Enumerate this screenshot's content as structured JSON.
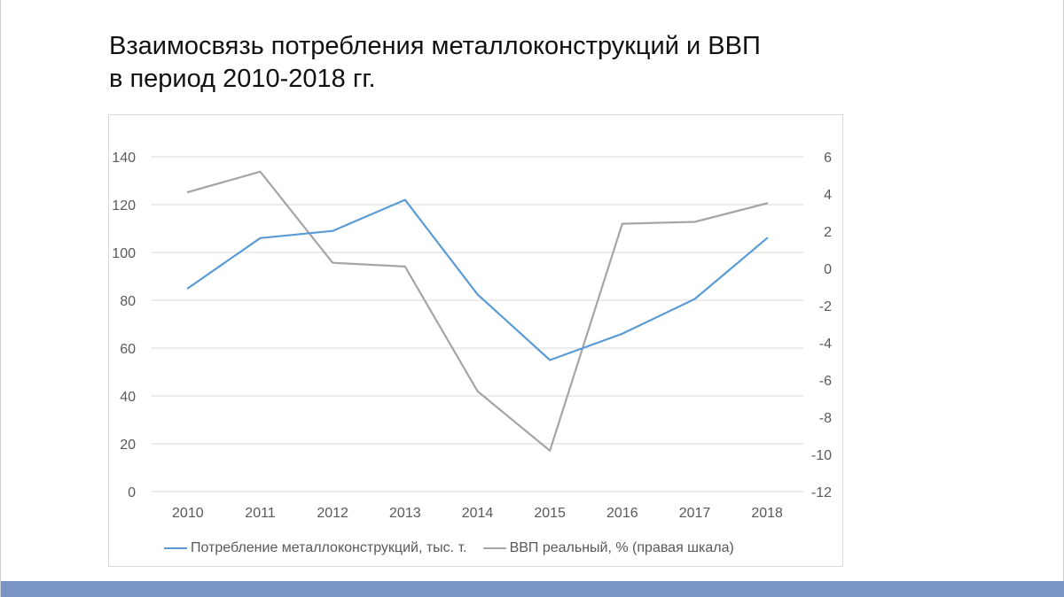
{
  "title": {
    "line1": "Взаимосвязь потребления металлоконструкций и ВВП",
    "line2": "в период 2010-2018 гг."
  },
  "chart_data": {
    "type": "line",
    "x": [
      "2010",
      "2011",
      "2012",
      "2013",
      "2014",
      "2015",
      "2016",
      "2017",
      "2018"
    ],
    "series": [
      {
        "name": "Потребление металлоконструкций, тыс. т.",
        "axis": "left",
        "color": "#5b9bd5",
        "values": [
          85,
          106,
          109,
          122,
          82.5,
          55,
          66,
          80.5,
          106
        ]
      },
      {
        "name": "ВВП реальный, % (правая шкала)",
        "axis": "right",
        "color": "#a5a5a5",
        "values": [
          4.1,
          5.2,
          0.3,
          0.1,
          -6.6,
          -9.8,
          2.4,
          2.5,
          3.5
        ]
      }
    ],
    "y_left": {
      "min": 0,
      "max": 140,
      "step": 20,
      "ticks": [
        "0",
        "20",
        "40",
        "60",
        "80",
        "100",
        "120",
        "140"
      ]
    },
    "y_right": {
      "min": -12,
      "max": 6,
      "step": 2,
      "ticks": [
        "-12",
        "-10",
        "-8",
        "-6",
        "-4",
        "-2",
        "0",
        "2",
        "4",
        "6"
      ]
    },
    "grid": true,
    "legend_position": "bottom"
  },
  "colors": {
    "gridline": "#d9d9d9",
    "tick_text": "#595959",
    "footer_bar": "#7b96c6"
  }
}
